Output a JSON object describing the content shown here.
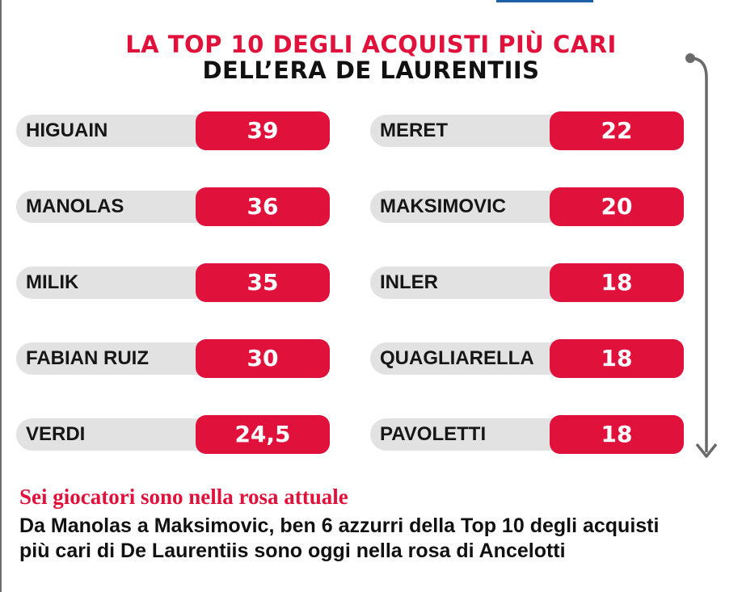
{
  "title_line1": "LA TOP 10 DEGLI ACQUISTI PIÙ CARI",
  "title_line2": "DELL’ERA DE LAURENTIIS",
  "left_column": [
    {
      "name": "HIGUAIN",
      "value": "39"
    },
    {
      "name": "MANOLAS",
      "value": "36"
    },
    {
      "name": "MILIK",
      "value": "35"
    },
    {
      "name": "FABIAN RUIZ",
      "value": "30"
    },
    {
      "name": "VERDI",
      "value": "24,5"
    }
  ],
  "right_column": [
    {
      "name": "MERET",
      "value": "22"
    },
    {
      "name": "MAKSIMOVIC",
      "value": "20"
    },
    {
      "name": "INLER",
      "value": "18"
    },
    {
      "name": "QUAGLIARELLA",
      "value": "18"
    },
    {
      "name": "PAVOLETTI",
      "value": "18"
    }
  ],
  "subtitle": "Sei giocatori sono nella rosa attuale",
  "description_line1": "Da Manolas a Maksimovic, ben 6 azzurri della Top 10 degli acquisti",
  "description_line2": "più cari di De Laurentiis sono oggi nella rosa di Ancelotti",
  "colors": {
    "accent": "#e0123b",
    "row_bg": "#e2e2e2",
    "text": "#111111"
  },
  "icons": [
    "down-arrow-icon"
  ]
}
